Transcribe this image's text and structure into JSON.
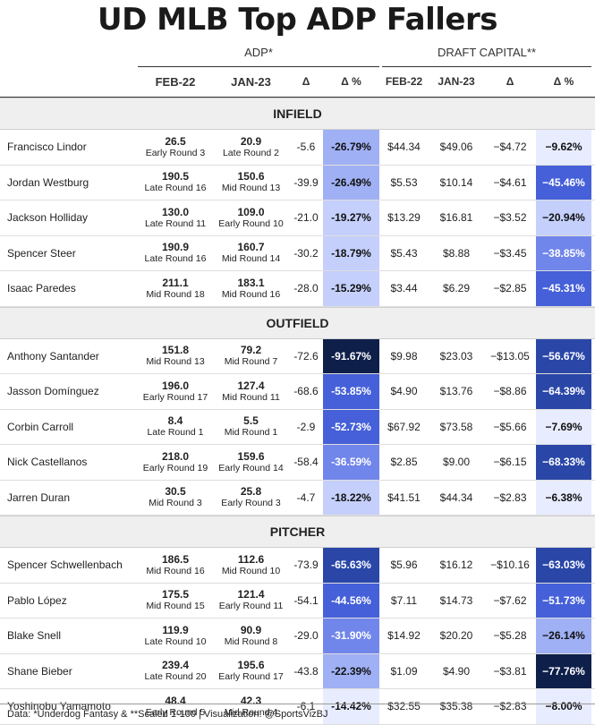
{
  "title": "UD MLB Top ADP Fallers",
  "groups": {
    "adp": "ADP*",
    "capital": "DRAFT CAPITAL**"
  },
  "columns": {
    "feb": "FEB-22",
    "jan": "JAN-23",
    "delta": "Δ",
    "delta_pct": "Δ %"
  },
  "sections": [
    {
      "name": "INFIELD",
      "rows": [
        {
          "player": "Francisco Lindor",
          "feb_adp": "26.5",
          "feb_round": "Early Round 3",
          "jan_adp": "20.9",
          "jan_round": "Late Round 2",
          "adp_delta": "-5.6",
          "adp_pct": "-26.79%",
          "adp_pct_num": -26.79,
          "feb_cap": "$44.34",
          "jan_cap": "$49.06",
          "cap_delta": "−$4.72",
          "cap_pct": "−9.62%",
          "cap_pct_num": -9.62
        },
        {
          "player": "Jordan Westburg",
          "feb_adp": "190.5",
          "feb_round": "Late Round 16",
          "jan_adp": "150.6",
          "jan_round": "Mid Round 13",
          "adp_delta": "-39.9",
          "adp_pct": "-26.49%",
          "adp_pct_num": -26.49,
          "feb_cap": "$5.53",
          "jan_cap": "$10.14",
          "cap_delta": "−$4.61",
          "cap_pct": "−45.46%",
          "cap_pct_num": -45.46
        },
        {
          "player": "Jackson Holliday",
          "feb_adp": "130.0",
          "feb_round": "Late Round 11",
          "jan_adp": "109.0",
          "jan_round": "Early Round 10",
          "adp_delta": "-21.0",
          "adp_pct": "-19.27%",
          "adp_pct_num": -19.27,
          "feb_cap": "$13.29",
          "jan_cap": "$16.81",
          "cap_delta": "−$3.52",
          "cap_pct": "−20.94%",
          "cap_pct_num": -20.94
        },
        {
          "player": "Spencer Steer",
          "feb_adp": "190.9",
          "feb_round": "Late Round 16",
          "jan_adp": "160.7",
          "jan_round": "Mid Round 14",
          "adp_delta": "-30.2",
          "adp_pct": "-18.79%",
          "adp_pct_num": -18.79,
          "feb_cap": "$5.43",
          "jan_cap": "$8.88",
          "cap_delta": "−$3.45",
          "cap_pct": "−38.85%",
          "cap_pct_num": -38.85
        },
        {
          "player": "Isaac Paredes",
          "feb_adp": "211.1",
          "feb_round": "Mid Round 18",
          "jan_adp": "183.1",
          "jan_round": "Mid Round 16",
          "adp_delta": "-28.0",
          "adp_pct": "-15.29%",
          "adp_pct_num": -15.29,
          "feb_cap": "$3.44",
          "jan_cap": "$6.29",
          "cap_delta": "−$2.85",
          "cap_pct": "−45.31%",
          "cap_pct_num": -45.31
        }
      ]
    },
    {
      "name": "OUTFIELD",
      "rows": [
        {
          "player": "Anthony Santander",
          "feb_adp": "151.8",
          "feb_round": "Mid Round 13",
          "jan_adp": "79.2",
          "jan_round": "Mid Round 7",
          "adp_delta": "-72.6",
          "adp_pct": "-91.67%",
          "adp_pct_num": -91.67,
          "feb_cap": "$9.98",
          "jan_cap": "$23.03",
          "cap_delta": "−$13.05",
          "cap_pct": "−56.67%",
          "cap_pct_num": -56.67
        },
        {
          "player": "Jasson Domínguez",
          "feb_adp": "196.0",
          "feb_round": "Early Round 17",
          "jan_adp": "127.4",
          "jan_round": "Mid Round 11",
          "adp_delta": "-68.6",
          "adp_pct": "-53.85%",
          "adp_pct_num": -53.85,
          "feb_cap": "$4.90",
          "jan_cap": "$13.76",
          "cap_delta": "−$8.86",
          "cap_pct": "−64.39%",
          "cap_pct_num": -64.39
        },
        {
          "player": "Corbin Carroll",
          "feb_adp": "8.4",
          "feb_round": "Late Round 1",
          "jan_adp": "5.5",
          "jan_round": "Mid Round 1",
          "adp_delta": "-2.9",
          "adp_pct": "-52.73%",
          "adp_pct_num": -52.73,
          "feb_cap": "$67.92",
          "jan_cap": "$73.58",
          "cap_delta": "−$5.66",
          "cap_pct": "−7.69%",
          "cap_pct_num": -7.69
        },
        {
          "player": "Nick Castellanos",
          "feb_adp": "218.0",
          "feb_round": "Early Round 19",
          "jan_adp": "159.6",
          "jan_round": "Early Round 14",
          "adp_delta": "-58.4",
          "adp_pct": "-36.59%",
          "adp_pct_num": -36.59,
          "feb_cap": "$2.85",
          "jan_cap": "$9.00",
          "cap_delta": "−$6.15",
          "cap_pct": "−68.33%",
          "cap_pct_num": -68.33
        },
        {
          "player": "Jarren Duran",
          "feb_adp": "30.5",
          "feb_round": "Mid Round 3",
          "jan_adp": "25.8",
          "jan_round": "Early Round 3",
          "adp_delta": "-4.7",
          "adp_pct": "-18.22%",
          "adp_pct_num": -18.22,
          "feb_cap": "$41.51",
          "jan_cap": "$44.34",
          "cap_delta": "−$2.83",
          "cap_pct": "−6.38%",
          "cap_pct_num": -6.38
        }
      ]
    },
    {
      "name": "PITCHER",
      "rows": [
        {
          "player": "Spencer Schwellenbach",
          "feb_adp": "186.5",
          "feb_round": "Mid Round 16",
          "jan_adp": "112.6",
          "jan_round": "Mid Round 10",
          "adp_delta": "-73.9",
          "adp_pct": "-65.63%",
          "adp_pct_num": -65.63,
          "feb_cap": "$5.96",
          "jan_cap": "$16.12",
          "cap_delta": "−$10.16",
          "cap_pct": "−63.03%",
          "cap_pct_num": -63.03
        },
        {
          "player": "Pablo López",
          "feb_adp": "175.5",
          "feb_round": "Mid Round 15",
          "jan_adp": "121.4",
          "jan_round": "Early Round 11",
          "adp_delta": "-54.1",
          "adp_pct": "-44.56%",
          "adp_pct_num": -44.56,
          "feb_cap": "$7.11",
          "jan_cap": "$14.73",
          "cap_delta": "−$7.62",
          "cap_pct": "−51.73%",
          "cap_pct_num": -51.73
        },
        {
          "player": "Blake Snell",
          "feb_adp": "119.9",
          "feb_round": "Late Round 10",
          "jan_adp": "90.9",
          "jan_round": "Mid Round 8",
          "adp_delta": "-29.0",
          "adp_pct": "-31.90%",
          "adp_pct_num": -31.9,
          "feb_cap": "$14.92",
          "jan_cap": "$20.20",
          "cap_delta": "−$5.28",
          "cap_pct": "−26.14%",
          "cap_pct_num": -26.14
        },
        {
          "player": "Shane Bieber",
          "feb_adp": "239.4",
          "feb_round": "Late Round 20",
          "jan_adp": "195.6",
          "jan_round": "Early Round 17",
          "adp_delta": "-43.8",
          "adp_pct": "-22.39%",
          "adp_pct_num": -22.39,
          "feb_cap": "$1.09",
          "jan_cap": "$4.90",
          "cap_delta": "−$3.81",
          "cap_pct": "−77.76%",
          "cap_pct_num": -77.76
        },
        {
          "player": "Yoshinobu Yamamoto",
          "feb_adp": "48.4",
          "feb_round": "Early Round 5",
          "jan_adp": "42.3",
          "jan_round": "Mid Round 4",
          "adp_delta": "-6.1",
          "adp_pct": "-14.42%",
          "adp_pct_num": -14.42,
          "feb_cap": "$32.55",
          "jan_cap": "$35.38",
          "cap_delta": "−$2.83",
          "cap_pct": "−8.00%",
          "cap_pct_num": -8.0
        }
      ]
    }
  ],
  "colors": {
    "light": "#e8ecff",
    "mid": "#8b9cf0",
    "strong": "#4560d8",
    "dark": "#0e1f4a",
    "text_dark": "#111111",
    "text_light": "#ffffff"
  },
  "footer": "Data: *Underdog Fantasy & **Scaled 1-100 | Visualization: @SportsVizBJ"
}
